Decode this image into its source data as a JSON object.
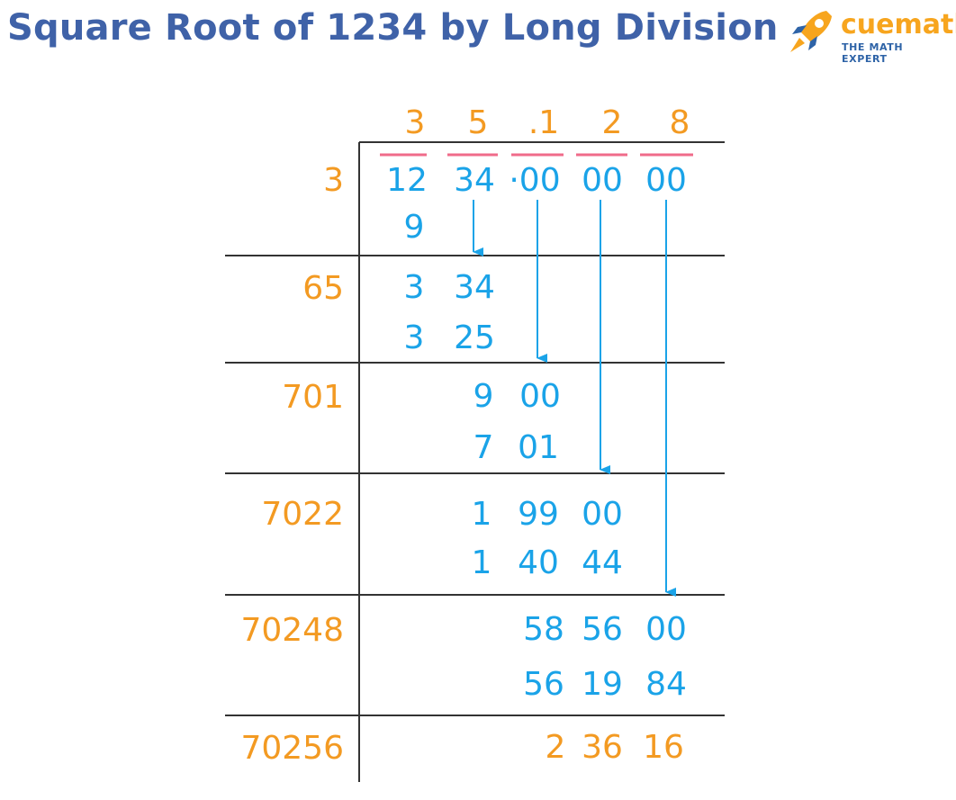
{
  "title": "Square Root of 1234 by Long Division",
  "brand": {
    "name": "cuemath",
    "tagline": "THE MATH EXPERT",
    "accent": "#f7a51e",
    "primary": "#2e63a7",
    "icon": "rocket-icon"
  },
  "colors": {
    "title": "#3f62a8",
    "digits": "#1aa3e8",
    "divisors": "#f39a22",
    "pairs_overline": "#f06b8a",
    "lines": "#333333"
  },
  "quotient": [
    "3",
    "5",
    ".1",
    "2",
    "8"
  ],
  "dividend_pairs": [
    "12",
    "34",
    "·00",
    "00",
    "00"
  ],
  "divisors": [
    "3",
    "65",
    "701",
    "7022",
    "70248",
    "70256"
  ],
  "steps": [
    {
      "subtract": [
        "9"
      ]
    },
    {
      "remainder": [
        "3",
        "34"
      ],
      "subtract": [
        "3",
        "25"
      ]
    },
    {
      "remainder": [
        "9",
        "00"
      ],
      "subtract": [
        "7",
        "01"
      ]
    },
    {
      "remainder": [
        "1",
        "99",
        "00"
      ],
      "subtract": [
        "1",
        "40",
        "44"
      ]
    },
    {
      "remainder": [
        "58",
        "56",
        "00"
      ],
      "subtract": [
        "56",
        "19",
        "84"
      ]
    }
  ],
  "final_remainder": [
    "2",
    "36",
    "16"
  ]
}
